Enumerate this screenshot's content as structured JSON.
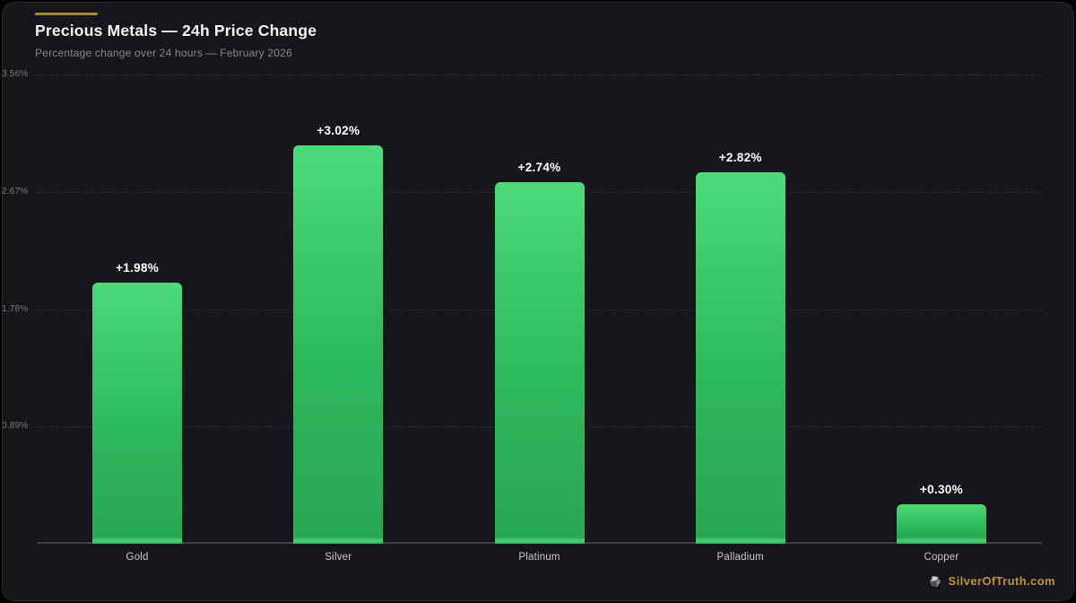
{
  "header": {
    "title": "Precious Metals — 24h Price Change",
    "subtitle": "Percentage change over 24 hours — February 2026"
  },
  "accent_color": "#a8892f",
  "watermark": {
    "label": "SilverOfTruth.com",
    "icon": "silver-nugget-icon",
    "color": "#b9923e"
  },
  "chart_data": {
    "type": "bar",
    "title": "Precious Metals — 24h Price Change",
    "subtitle": "Percentage change over 24 hours — February 2026",
    "categories": [
      "Gold",
      "Silver",
      "Platinum",
      "Palladium",
      "Copper"
    ],
    "values": [
      1.98,
      3.02,
      2.74,
      2.82,
      0.3
    ],
    "value_labels": [
      "+1.98%",
      "+3.02%",
      "+2.74%",
      "+2.82%",
      "+0.30%"
    ],
    "xlabel": "",
    "ylabel": "",
    "ylim": [
      0,
      3.56
    ],
    "yticks": [
      0.89,
      1.78,
      2.67,
      3.56
    ],
    "ytick_labels": [
      "+0.89%",
      "+1.78%",
      "+2.67%",
      "+3.56%"
    ],
    "grid": "horizontal-dashed",
    "legend": "none",
    "bar_color_top": "#4bdb7a",
    "bar_color_bottom": "#27a851",
    "value_label_color": "#ffffff",
    "background_color": "#17171b"
  }
}
